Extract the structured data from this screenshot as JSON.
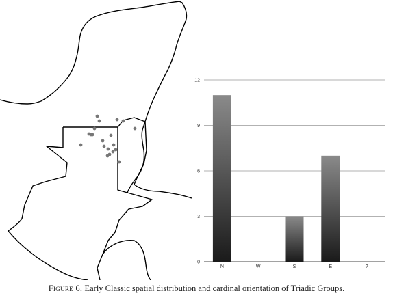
{
  "caption": {
    "figure_label": "Figure 6.",
    "text": "Early Classic spatial distribution and cardinal orientation of Triadic Groups."
  },
  "map": {
    "site_count": 20,
    "point_color": "#777777",
    "outline_color": "#000000"
  },
  "chart_data": {
    "type": "bar",
    "categories": [
      "N",
      "W",
      "S",
      "E",
      "?"
    ],
    "values": [
      11,
      0,
      3,
      7,
      0
    ],
    "ylim": [
      0,
      12
    ],
    "yticks": [
      "0",
      "3",
      "6",
      "9",
      "12"
    ],
    "grid": true,
    "bar_gradient": [
      "#1a1a1a",
      "#8a8a8a"
    ]
  }
}
